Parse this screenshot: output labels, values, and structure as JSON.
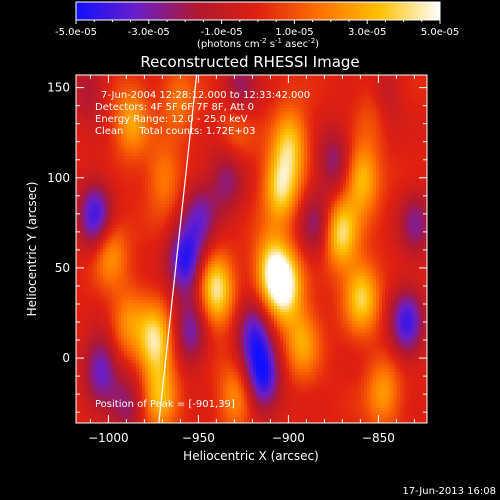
{
  "colorbar": {
    "tick_labels": [
      "-5.0e-05",
      "-3.0e-05",
      "-1.0e-05",
      "1.0e-05",
      "3.0e-05",
      "5.0e-05"
    ],
    "range": [
      -5e-05,
      5e-05
    ],
    "units_prefix": "(photons cm",
    "units_exp1": "-2",
    "units_mid": " s",
    "units_exp2": "-1",
    "units_suffix": " asec",
    "units_exp3": "-2",
    "units_close": ")",
    "colormap": [
      "#1010ff",
      "#6a1ec8",
      "#b01830",
      "#e02010",
      "#ff7000",
      "#ffc000",
      "#ffffff"
    ]
  },
  "chart_data": {
    "type": "heatmap",
    "title": "Reconstructed RHESSI Image",
    "xlabel": "Heliocentric X (arcsec)",
    "ylabel": "Heliocentric Y (arcsec)",
    "xlim": [
      -1018,
      -823
    ],
    "ylim": [
      -36,
      157
    ],
    "x_ticks": [
      -1000,
      -950,
      -900,
      -850
    ],
    "y_ticks": [
      0,
      50,
      100,
      150
    ],
    "annotations": {
      "time_range": "7-Jun-2004 12:28:12.000 to 12:33:42.000",
      "detectors": "Detectors: 4F 5F 6F 7F 8F, Att 0",
      "energy": "Energy Range: 12.0 - 25.0 keV",
      "method": "Clean     Total counts: 1.72E+03",
      "peak": "Position of Peak = [-901,39]"
    },
    "peak_position": [
      -901,
      39
    ],
    "limb_line": [
      [
        -972,
        -36
      ],
      [
        -951,
        157
      ]
    ],
    "blobs": [
      {
        "x": -988,
        "y": 132,
        "v": 0.55
      },
      {
        "x": -1000,
        "y": 60,
        "v": 0.5
      },
      {
        "x": -990,
        "y": 20,
        "v": 0.45
      },
      {
        "x": -962,
        "y": 143,
        "v": 0.35
      },
      {
        "x": -970,
        "y": 100,
        "v": 0.4
      },
      {
        "x": -930,
        "y": 130,
        "v": 0.35
      },
      {
        "x": -975,
        "y": 10,
        "v": 0.85
      },
      {
        "x": -972,
        "y": -20,
        "v": 0.6
      },
      {
        "x": -941,
        "y": 38,
        "v": 0.9
      },
      {
        "x": -910,
        "y": 50,
        "v": 0.8
      },
      {
        "x": -903,
        "y": 40,
        "v": 0.95
      },
      {
        "x": -905,
        "y": 95,
        "v": 0.8
      },
      {
        "x": -900,
        "y": 120,
        "v": 0.7
      },
      {
        "x": -893,
        "y": 10,
        "v": 0.55
      },
      {
        "x": -872,
        "y": 70,
        "v": 0.85
      },
      {
        "x": -860,
        "y": 100,
        "v": 0.7
      },
      {
        "x": -860,
        "y": 35,
        "v": 0.75
      },
      {
        "x": -852,
        "y": 140,
        "v": 0.4
      },
      {
        "x": -848,
        "y": -18,
        "v": 0.5
      },
      {
        "x": -930,
        "y": -20,
        "v": 0.45
      },
      {
        "x": -1008,
        "y": 80,
        "v": -0.85
      },
      {
        "x": -1005,
        "y": -5,
        "v": -0.7
      },
      {
        "x": -958,
        "y": 55,
        "v": -0.9
      },
      {
        "x": -955,
        "y": 15,
        "v": -0.6
      },
      {
        "x": -950,
        "y": 80,
        "v": -0.55
      },
      {
        "x": -920,
        "y": 15,
        "v": -0.75
      },
      {
        "x": -915,
        "y": -10,
        "v": -0.9
      },
      {
        "x": -935,
        "y": 100,
        "v": -0.5
      },
      {
        "x": -928,
        "y": 150,
        "v": -0.5
      },
      {
        "x": -885,
        "y": 75,
        "v": -0.5
      },
      {
        "x": -875,
        "y": 110,
        "v": -0.5
      },
      {
        "x": -835,
        "y": 20,
        "v": -0.8
      },
      {
        "x": -830,
        "y": 75,
        "v": -0.5
      },
      {
        "x": -848,
        "y": 145,
        "v": -0.45
      },
      {
        "x": -1012,
        "y": 150,
        "v": -0.35
      },
      {
        "x": -990,
        "y": -25,
        "v": -0.45
      }
    ]
  },
  "footer": {
    "timestamp": "17-Jun-2013 16:08"
  }
}
